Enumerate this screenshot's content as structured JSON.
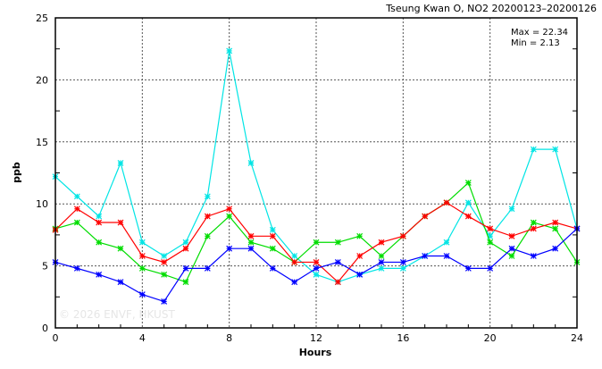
{
  "chart_data": {
    "type": "line",
    "title": "Tseung Kwan O, NO2 20200123–20200126",
    "xlabel": "Hours",
    "ylabel": "ppb",
    "xlim": [
      0,
      24
    ],
    "ylim": [
      0,
      25
    ],
    "xticks": [
      "0",
      "4",
      "8",
      "12",
      "16",
      "20",
      "24"
    ],
    "yticks": [
      "0",
      "5",
      "10",
      "15",
      "20",
      "25"
    ],
    "grid": true,
    "stats": {
      "max_label": "Max = 22.34",
      "min_label": "Min =  2.13"
    },
    "watermark": "© 2026  ENVF, HKUST",
    "x": [
      0,
      1,
      2,
      3,
      4,
      5,
      6,
      7,
      8,
      9,
      10,
      11,
      12,
      13,
      14,
      15,
      16,
      17,
      18,
      19,
      20,
      21,
      22,
      23,
      24
    ],
    "series": [
      {
        "name": "cyan",
        "color": "#00e5e5",
        "values": [
          12.2,
          10.6,
          9.0,
          13.3,
          6.9,
          5.8,
          6.9,
          10.6,
          22.34,
          13.3,
          7.9,
          5.8,
          4.3,
          3.7,
          4.3,
          4.8,
          4.8,
          5.8,
          6.9,
          10.1,
          7.4,
          9.6,
          14.4,
          14.4,
          8.0
        ]
      },
      {
        "name": "green",
        "color": "#00dd00",
        "values": [
          8.0,
          8.5,
          6.9,
          6.4,
          4.8,
          4.3,
          3.7,
          7.4,
          9.0,
          6.9,
          6.4,
          5.3,
          6.9,
          6.9,
          7.4,
          5.8,
          7.4,
          9.0,
          10.1,
          11.7,
          6.9,
          5.8,
          8.5,
          8.0,
          5.3
        ]
      },
      {
        "name": "red",
        "color": "#ff0000",
        "values": [
          7.9,
          9.6,
          8.5,
          8.5,
          5.8,
          5.3,
          6.4,
          9.0,
          9.6,
          7.4,
          7.4,
          5.3,
          5.3,
          3.7,
          5.8,
          6.9,
          7.4,
          9.0,
          10.1,
          9.0,
          8.0,
          7.4,
          8.0,
          8.5,
          8.0
        ]
      },
      {
        "name": "blue",
        "color": "#0000ff",
        "values": [
          5.3,
          4.8,
          4.3,
          3.7,
          2.7,
          2.13,
          4.8,
          4.8,
          6.4,
          6.4,
          4.8,
          3.7,
          4.8,
          5.3,
          4.3,
          5.3,
          5.3,
          5.8,
          5.8,
          4.8,
          4.8,
          6.4,
          5.8,
          6.4,
          8.0
        ]
      }
    ]
  }
}
